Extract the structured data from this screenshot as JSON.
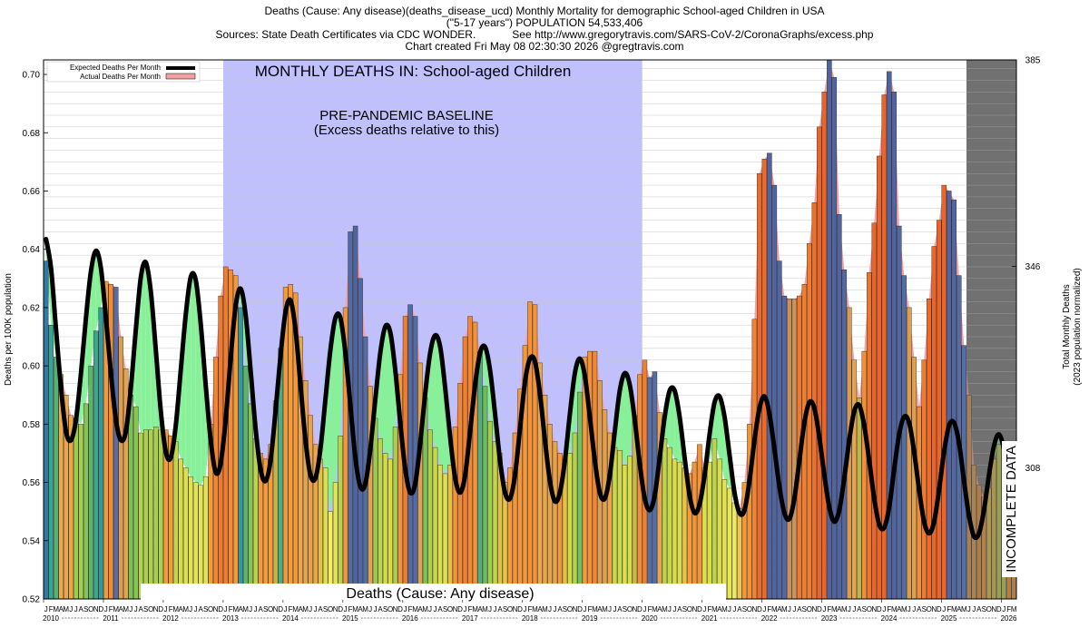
{
  "header": {
    "line1": "Deaths (Cause: Any disease)(deaths_disease_ucd) Monthly Mortality for demographic School-aged Children in USA",
    "line2": "(\"5-17 years\") POPULATION 54,533,406",
    "line3": "Sources: State Death Certificates via CDC WONDER.            See http://www.gregorytravis.com/SARS-CoV-2/CoronaGraphs/excess.php",
    "line4": "Chart created Fri May 08 02:30:30 2026 @gregtravis.com"
  },
  "chart_data": {
    "type": "bar",
    "title": "MONTHLY DEATHS IN: School-aged Children",
    "baseline_label": "PRE-PANDEMIC BASELINE",
    "baseline_sublabel": "(Excess deaths relative to this)",
    "cause_label": "Deaths (Cause: Any disease)",
    "incomplete_label": "INCOMPLETE DATA",
    "ylabel": "Deaths per 100K population",
    "ylabel_right_1": "Total Monthly Deaths",
    "ylabel_right_2": "(2023 population normalized)",
    "ylim": [
      0.52,
      0.705
    ],
    "right_ticks": [
      {
        "value": 308,
        "label": "308"
      },
      {
        "value": 346,
        "label": "346"
      },
      {
        "value": 385,
        "label": "385"
      }
    ],
    "yticks": [
      {
        "value": 0.52,
        "label": "0.52"
      },
      {
        "value": 0.54,
        "label": "0.54"
      },
      {
        "value": 0.56,
        "label": "0.56"
      },
      {
        "value": 0.58,
        "label": "0.58"
      },
      {
        "value": 0.6,
        "label": "0.60"
      },
      {
        "value": 0.62,
        "label": "0.62"
      },
      {
        "value": 0.64,
        "label": "0.64"
      },
      {
        "value": 0.66,
        "label": "0.66"
      },
      {
        "value": 0.68,
        "label": "0.68"
      },
      {
        "value": 0.7,
        "label": "0.70"
      }
    ],
    "legend": {
      "position": "top-left",
      "expected": "Expected Deaths Per Month",
      "actual": "Actual Deaths Per Month"
    },
    "baseline_period": [
      "2013-01",
      "2019-12"
    ],
    "incomplete_period": [
      "2025-06",
      "2026-03"
    ],
    "start_month": "2010-01",
    "month_letters": [
      "J",
      "F",
      "M",
      "A",
      "M",
      "J",
      "J",
      "A",
      "S",
      "O",
      "N",
      "D"
    ],
    "year_labels": [
      "2010",
      "2011",
      "2012",
      "2013",
      "2014",
      "2015",
      "2016",
      "2017",
      "2018",
      "2019",
      "2020",
      "2021",
      "2022",
      "2023",
      "2024",
      "2025",
      "2026"
    ],
    "series": [
      {
        "name": "Actual Deaths Per Month",
        "values": [
          0.636,
          0.614,
          0.603,
          0.597,
          0.59,
          0.583,
          0.582,
          0.58,
          0.587,
          0.6,
          0.612,
          0.62,
          0.629,
          0.628,
          0.627,
          0.61,
          0.599,
          0.59,
          0.586,
          0.577,
          0.578,
          0.578,
          0.579,
          0.578,
          0.578,
          0.576,
          0.574,
          0.568,
          0.565,
          0.562,
          0.56,
          0.559,
          0.562,
          0.58,
          0.603,
          0.624,
          0.634,
          0.633,
          0.631,
          0.62,
          0.6,
          0.587,
          0.575,
          0.57,
          0.568,
          0.573,
          0.588,
          0.606,
          0.627,
          0.628,
          0.625,
          0.61,
          0.595,
          0.583,
          0.573,
          0.568,
          0.565,
          0.55,
          0.56,
          0.576,
          0.62,
          0.646,
          0.648,
          0.63,
          0.61,
          0.593,
          0.582,
          0.575,
          0.57,
          0.568,
          0.579,
          0.597,
          0.617,
          0.621,
          0.617,
          0.601,
          0.589,
          0.578,
          0.572,
          0.566,
          0.563,
          0.566,
          0.579,
          0.594,
          0.61,
          0.617,
          0.615,
          0.605,
          0.593,
          0.581,
          0.574,
          0.57,
          0.56,
          0.565,
          0.577,
          0.592,
          0.607,
          0.622,
          0.621,
          0.601,
          0.59,
          0.58,
          0.574,
          0.57,
          0.568,
          0.57,
          0.577,
          0.591,
          0.603,
          0.605,
          0.605,
          0.595,
          0.585,
          0.577,
          0.572,
          0.571,
          0.566,
          0.569,
          0.583,
          0.597,
          0.602,
          0.596,
          0.598,
          0.584,
          0.575,
          0.572,
          0.568,
          0.567,
          0.565,
          0.563,
          0.567,
          0.573,
          0.565,
          0.567,
          0.575,
          0.568,
          0.561,
          0.558,
          0.553,
          0.551,
          0.56,
          0.58,
          0.616,
          0.666,
          0.671,
          0.673,
          0.662,
          0.636,
          0.624,
          0.623,
          0.623,
          0.624,
          0.628,
          0.642,
          0.656,
          0.682,
          0.694,
          0.705,
          0.699,
          0.652,
          0.633,
          0.62,
          0.602,
          0.589,
          0.605,
          0.632,
          0.649,
          0.672,
          0.693,
          0.701,
          0.694,
          0.648,
          0.631,
          0.62,
          0.603,
          0.586,
          0.602,
          0.623,
          0.641,
          0.65,
          0.662,
          0.66,
          0.657,
          0.631,
          0.607,
          0.59,
          0.566,
          0.559,
          0.555,
          0.558,
          0.568,
          0.573,
          0.573,
          0.573,
          0.565
        ]
      },
      {
        "name": "Expected Deaths Per Month",
        "values": [
          0.6435,
          0.6335,
          0.6125,
          0.5925,
          0.5775,
          0.5745,
          0.5815,
          0.5975,
          0.6165,
          0.6325,
          0.6395,
          0.6335,
          0.6165,
          0.5975,
          0.5815,
          0.5745,
          0.5775,
          0.5925,
          0.6125,
          0.6305,
          0.6355,
          0.6255,
          0.6055,
          0.5845,
          0.5705,
          0.5685,
          0.5795,
          0.5985,
          0.6175,
          0.6305,
          0.6295,
          0.6145,
          0.5935,
          0.5745,
          0.5635,
          0.5665,
          0.5815,
          0.6025,
          0.6205,
          0.6265,
          0.6175,
          0.5985,
          0.5785,
          0.5645,
          0.5605,
          0.5675,
          0.5845,
          0.6035,
          0.6185,
          0.6225,
          0.6125,
          0.5935,
          0.5745,
          0.5625,
          0.5615,
          0.5715,
          0.5885,
          0.6055,
          0.6165,
          0.6165,
          0.6045,
          0.5865,
          0.5685,
          0.5585,
          0.5595,
          0.5715,
          0.5885,
          0.6045,
          0.6135,
          0.6115,
          0.5985,
          0.5805,
          0.5645,
          0.5565,
          0.5595,
          0.5735,
          0.5905,
          0.6045,
          0.6105,
          0.6065,
          0.5925,
          0.5755,
          0.5615,
          0.5565,
          0.5625,
          0.5775,
          0.5935,
          0.6045,
          0.6065,
          0.5985,
          0.5835,
          0.5675,
          0.5565,
          0.5545,
          0.5625,
          0.5785,
          0.5945,
          0.6025,
          0.6015,
          0.5905,
          0.5745,
          0.5605,
          0.5535,
          0.5565,
          0.5675,
          0.5835,
          0.5975,
          0.6025,
          0.5965,
          0.5825,
          0.5675,
          0.5565,
          0.5545,
          0.5625,
          0.5775,
          0.5915,
          0.5975,
          0.5935,
          0.5815,
          0.5665,
          0.5545,
          0.5505,
          0.5555,
          0.5685,
          0.5825,
          0.5915,
          0.5915,
          0.5825,
          0.5685,
          0.5555,
          0.5495,
          0.5525,
          0.5625,
          0.5765,
          0.5875,
          0.5895,
          0.5825,
          0.5695,
          0.5565,
          0.5495,
          0.5505,
          0.5605,
          0.5745,
          0.5855,
          0.5895,
          0.5835,
          0.5715,
          0.5585,
          0.5495,
          0.5475,
          0.5545,
          0.5675,
          0.5805,
          0.5875,
          0.5855,
          0.5755,
          0.5625,
          0.5515,
          0.5465,
          0.5505,
          0.5615,
          0.5745,
          0.5845,
          0.5865,
          0.5795,
          0.5675,
          0.5545,
          0.5455,
          0.5445,
          0.5515,
          0.5645,
          0.5765,
          0.5825,
          0.5805,
          0.5705,
          0.5575,
          0.5465,
          0.5425,
          0.5465,
          0.5575,
          0.5705,
          0.5795,
          0.5805,
          0.5735,
          0.5605,
          0.5485,
          0.5415,
          0.5425,
          0.5505,
          0.5625,
          0.5725,
          0.5765,
          0.5715,
          0.5625,
          0.5525
        ]
      }
    ]
  }
}
